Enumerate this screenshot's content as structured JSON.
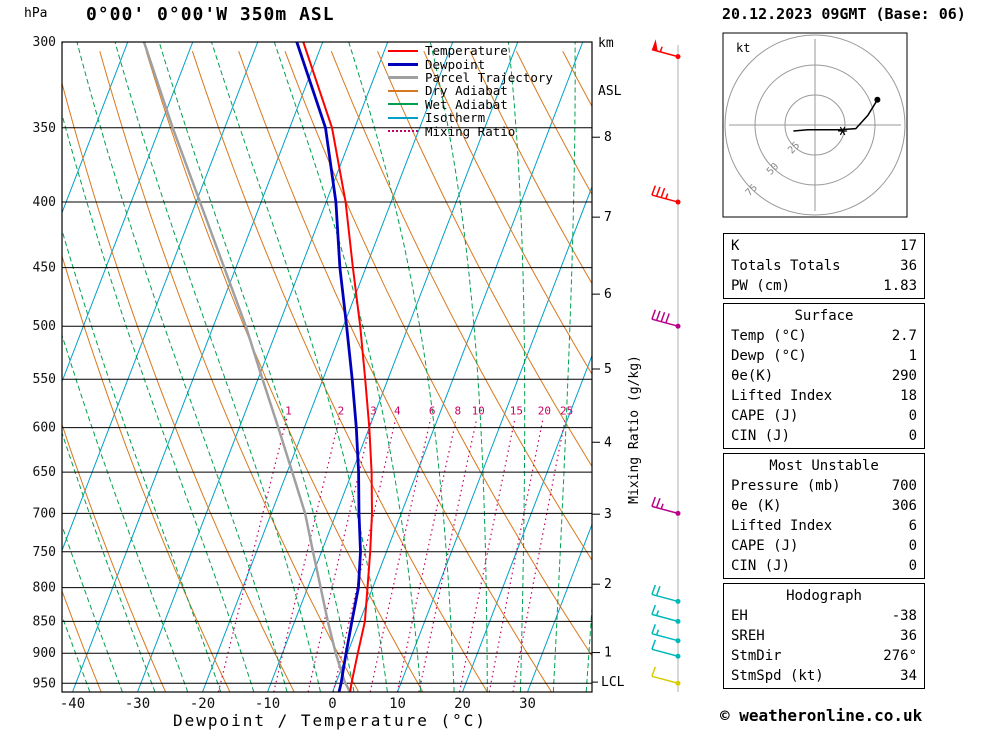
{
  "header": {
    "pressure_unit": "hPa",
    "station_title": "0°00' 0°00'W 350m ASL",
    "km_label": "km",
    "asl_label": "ASL",
    "datetime_title": "20.12.2023 09GMT (Base: 06)"
  },
  "axes": {
    "xlabel": "Dewpoint / Temperature (°C)",
    "mixing_ratio_axis_label": "Mixing Ratio (g/kg)",
    "lcl_label": "LCL"
  },
  "colors": {
    "temperature": "#ff0000",
    "dewpoint": "#0000bb",
    "parcel": "#a0a0a0",
    "dry_adiabat": "#d8781e",
    "wet_adiabat": "#00a050",
    "isotherm": "#00a0c8",
    "mixing_ratio": "#c80064",
    "grid": "#000000",
    "barb_line": "#b0b0b0"
  },
  "legend": [
    {
      "label": "Temperature",
      "color": "#ff0000",
      "style": "solid",
      "width": 2
    },
    {
      "label": "Dewpoint",
      "color": "#0000bb",
      "style": "solid",
      "width": 3
    },
    {
      "label": "Parcel Trajectory",
      "color": "#a0a0a0",
      "style": "solid",
      "width": 3
    },
    {
      "label": "Dry Adiabat",
      "color": "#d8781e",
      "style": "solid",
      "width": 2
    },
    {
      "label": "Wet Adiabat",
      "color": "#00a050",
      "style": "solid",
      "width": 2
    },
    {
      "label": "Isotherm",
      "color": "#00a0c8",
      "style": "solid",
      "width": 2
    },
    {
      "label": "Mixing Ratio",
      "color": "#c80064",
      "style": "dotted",
      "width": 2
    }
  ],
  "chart_data": {
    "type": "skewt_log_p",
    "pressure_range": [
      300,
      965
    ],
    "pressure_ticks": [
      300,
      350,
      400,
      450,
      500,
      550,
      600,
      650,
      700,
      750,
      800,
      850,
      900,
      950
    ],
    "temp_ticks": [
      -40,
      -30,
      -20,
      -10,
      0,
      10,
      20,
      30
    ],
    "km_ticks": [
      {
        "km": 8,
        "p": 356
      },
      {
        "km": 7,
        "p": 411
      },
      {
        "km": 6,
        "p": 472
      },
      {
        "km": 5,
        "p": 540
      },
      {
        "km": 4,
        "p": 616
      },
      {
        "km": 3,
        "p": 701
      },
      {
        "km": 2,
        "p": 795
      },
      {
        "km": 1,
        "p": 899
      }
    ],
    "lcl_pressure": 948,
    "mixing_ratio_values": [
      1,
      2,
      3,
      4,
      6,
      8,
      10,
      15,
      20,
      25
    ],
    "isotherms_c": {
      "min": -90,
      "max": 40,
      "step": 10
    },
    "dry_adiabats_k": {
      "min": 230,
      "max": 390,
      "step": 10
    },
    "wet_adiabats_c": {
      "min": -45,
      "max": 40,
      "step": 5
    },
    "series": {
      "temperature": {
        "label": "Temperature",
        "points": [
          [
            965,
            2.7
          ],
          [
            950,
            2.4
          ],
          [
            925,
            2.0
          ],
          [
            900,
            1.6
          ],
          [
            850,
            0.8
          ],
          [
            800,
            -0.8
          ],
          [
            750,
            -2.5
          ],
          [
            700,
            -4.5
          ],
          [
            650,
            -7.0
          ],
          [
            600,
            -10.0
          ],
          [
            550,
            -13.5
          ],
          [
            500,
            -17.4
          ],
          [
            450,
            -22.0
          ],
          [
            400,
            -27.0
          ],
          [
            350,
            -33.5
          ],
          [
            300,
            -43.0
          ]
        ]
      },
      "dewpoint": {
        "label": "Dewpoint",
        "points": [
          [
            965,
            1.0
          ],
          [
            950,
            0.8
          ],
          [
            925,
            0.3
          ],
          [
            900,
            -0.2
          ],
          [
            850,
            -1.2
          ],
          [
            800,
            -2.2
          ],
          [
            750,
            -4.0
          ],
          [
            700,
            -6.5
          ],
          [
            650,
            -9.0
          ],
          [
            600,
            -12.0
          ],
          [
            550,
            -15.5
          ],
          [
            500,
            -19.5
          ],
          [
            450,
            -24.0
          ],
          [
            400,
            -28.5
          ],
          [
            350,
            -34.5
          ],
          [
            300,
            -44.0
          ]
        ]
      },
      "parcel": {
        "label": "Parcel Trajectory",
        "points": [
          [
            965,
            2.7
          ],
          [
            948,
            1.3
          ],
          [
            900,
            -1.8
          ],
          [
            850,
            -4.9
          ],
          [
            800,
            -8.0
          ],
          [
            750,
            -11.3
          ],
          [
            700,
            -14.8
          ],
          [
            650,
            -19.2
          ],
          [
            600,
            -24.0
          ],
          [
            550,
            -29.3
          ],
          [
            500,
            -35.0
          ],
          [
            450,
            -41.8
          ],
          [
            400,
            -49.4
          ],
          [
            350,
            -58.0
          ],
          [
            300,
            -67.5
          ]
        ]
      }
    },
    "wind_barbs": [
      {
        "p": 308,
        "speed": 55,
        "color": "#ff0000"
      },
      {
        "p": 400,
        "speed": 35,
        "color": "#ff0000"
      },
      {
        "p": 500,
        "speed": 40,
        "color": "#bb0088"
      },
      {
        "p": 700,
        "speed": 25,
        "color": "#bb0088"
      },
      {
        "p": 820,
        "speed": 20,
        "color": "#00b8b8"
      },
      {
        "p": 850,
        "speed": 15,
        "color": "#00b8b8"
      },
      {
        "p": 880,
        "speed": 15,
        "color": "#00b8b8"
      },
      {
        "p": 905,
        "speed": 10,
        "color": "#00b8b8"
      },
      {
        "p": 950,
        "speed": 10,
        "color": "#d8cc00"
      }
    ]
  },
  "hodograph": {
    "unit_label": "kt",
    "ring_values": [
      25,
      50,
      75
    ],
    "trace": [
      [
        -18,
        -5
      ],
      [
        -6,
        -4
      ],
      [
        6,
        -4
      ],
      [
        20,
        -4
      ],
      [
        34,
        -3
      ],
      [
        44,
        8
      ],
      [
        52,
        21
      ]
    ],
    "storm_motion": [
      23,
      -5
    ]
  },
  "tables": [
    {
      "id": "indices",
      "title": "",
      "rows": [
        [
          "K",
          "17"
        ],
        [
          "Totals Totals",
          "36"
        ],
        [
          "PW (cm)",
          "1.83"
        ]
      ]
    },
    {
      "id": "surface",
      "title": "Surface",
      "rows": [
        [
          "Temp (°C)",
          "2.7"
        ],
        [
          "Dewp (°C)",
          "1"
        ],
        [
          "θe(K)",
          "290"
        ],
        [
          "Lifted Index",
          "18"
        ],
        [
          "CAPE (J)",
          "0"
        ],
        [
          "CIN (J)",
          "0"
        ]
      ]
    },
    {
      "id": "most-unstable",
      "title": "Most Unstable",
      "rows": [
        [
          "Pressure (mb)",
          "700"
        ],
        [
          "θe (K)",
          "306"
        ],
        [
          "Lifted Index",
          "6"
        ],
        [
          "CAPE (J)",
          "0"
        ],
        [
          "CIN (J)",
          "0"
        ]
      ]
    },
    {
      "id": "hodograph",
      "title": "Hodograph",
      "rows": [
        [
          "EH",
          "-38"
        ],
        [
          "SREH",
          "36"
        ],
        [
          "StmDir",
          "276°"
        ],
        [
          "StmSpd (kt)",
          "34"
        ]
      ]
    }
  ],
  "footer": {
    "copyright": "© weatheronline.co.uk"
  }
}
